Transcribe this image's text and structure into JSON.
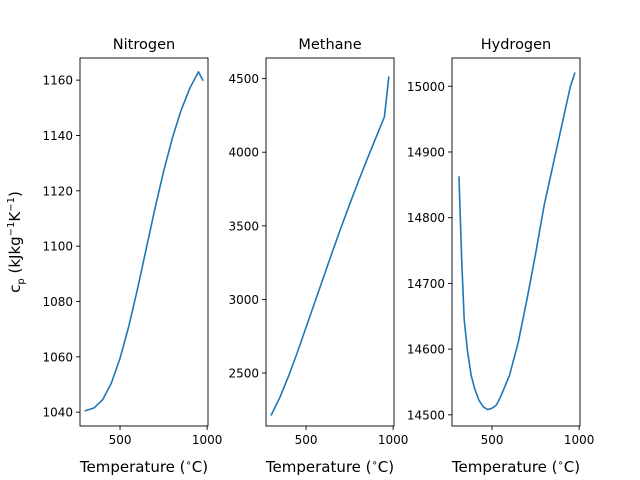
{
  "chart_data": [
    {
      "type": "line",
      "title": "Nitrogen",
      "xlabel": "Temperature ($^\\circ$C)",
      "ylabel": "c_p (kJkg^-1K^-1)",
      "xlim": [
        270,
        1005
      ],
      "ylim": [
        1035,
        1168
      ],
      "xticks": [
        500,
        1000
      ],
      "yticks": [
        1040,
        1060,
        1080,
        1100,
        1120,
        1140,
        1160
      ],
      "color": "#1f77b4",
      "series": [
        {
          "x": [
            300,
            350,
            400,
            450,
            500,
            550,
            600,
            650,
            700,
            750,
            800,
            850,
            900,
            950,
            975
          ],
          "y": [
            1040.5,
            1041.5,
            1044.5,
            1050.5,
            1059.5,
            1071,
            1084.5,
            1099,
            1113.5,
            1127,
            1139,
            1149,
            1157,
            1163,
            1160
          ]
        }
      ]
    },
    {
      "type": "line",
      "title": "Methane",
      "xlabel": "Temperature ($^\\circ$C)",
      "ylabel": "",
      "xlim": [
        270,
        1005
      ],
      "ylim": [
        2140,
        4640
      ],
      "xticks": [
        500,
        1000
      ],
      "yticks": [
        2500,
        3000,
        3500,
        4000,
        4500
      ],
      "color": "#1f77b4",
      "series": [
        {
          "x": [
            300,
            350,
            400,
            450,
            500,
            550,
            600,
            650,
            700,
            750,
            800,
            850,
            900,
            950,
            975
          ],
          "y": [
            2215,
            2335,
            2480,
            2640,
            2810,
            2980,
            3150,
            3320,
            3485,
            3645,
            3800,
            3950,
            4095,
            4240,
            4510
          ]
        }
      ]
    },
    {
      "type": "line",
      "title": "Hydrogen",
      "xlabel": "Temperature ($^\\circ$C)",
      "ylabel": "",
      "xlim": [
        270,
        1005
      ],
      "ylim": [
        14483,
        15043
      ],
      "xticks": [
        500,
        1000
      ],
      "yticks": [
        14500,
        14600,
        14700,
        14800,
        14900,
        15000
      ],
      "color": "#1f77b4",
      "series": [
        {
          "x": [
            310,
            325,
            340,
            360,
            380,
            400,
            425,
            450,
            475,
            500,
            525,
            550,
            600,
            650,
            700,
            750,
            800,
            850,
            900,
            950,
            975
          ],
          "y": [
            14862,
            14740,
            14645,
            14595,
            14560,
            14540,
            14522,
            14512,
            14508,
            14510,
            14515,
            14528,
            14560,
            14610,
            14675,
            14745,
            14820,
            14880,
            14940,
            15000,
            15020
          ]
        }
      ]
    }
  ]
}
